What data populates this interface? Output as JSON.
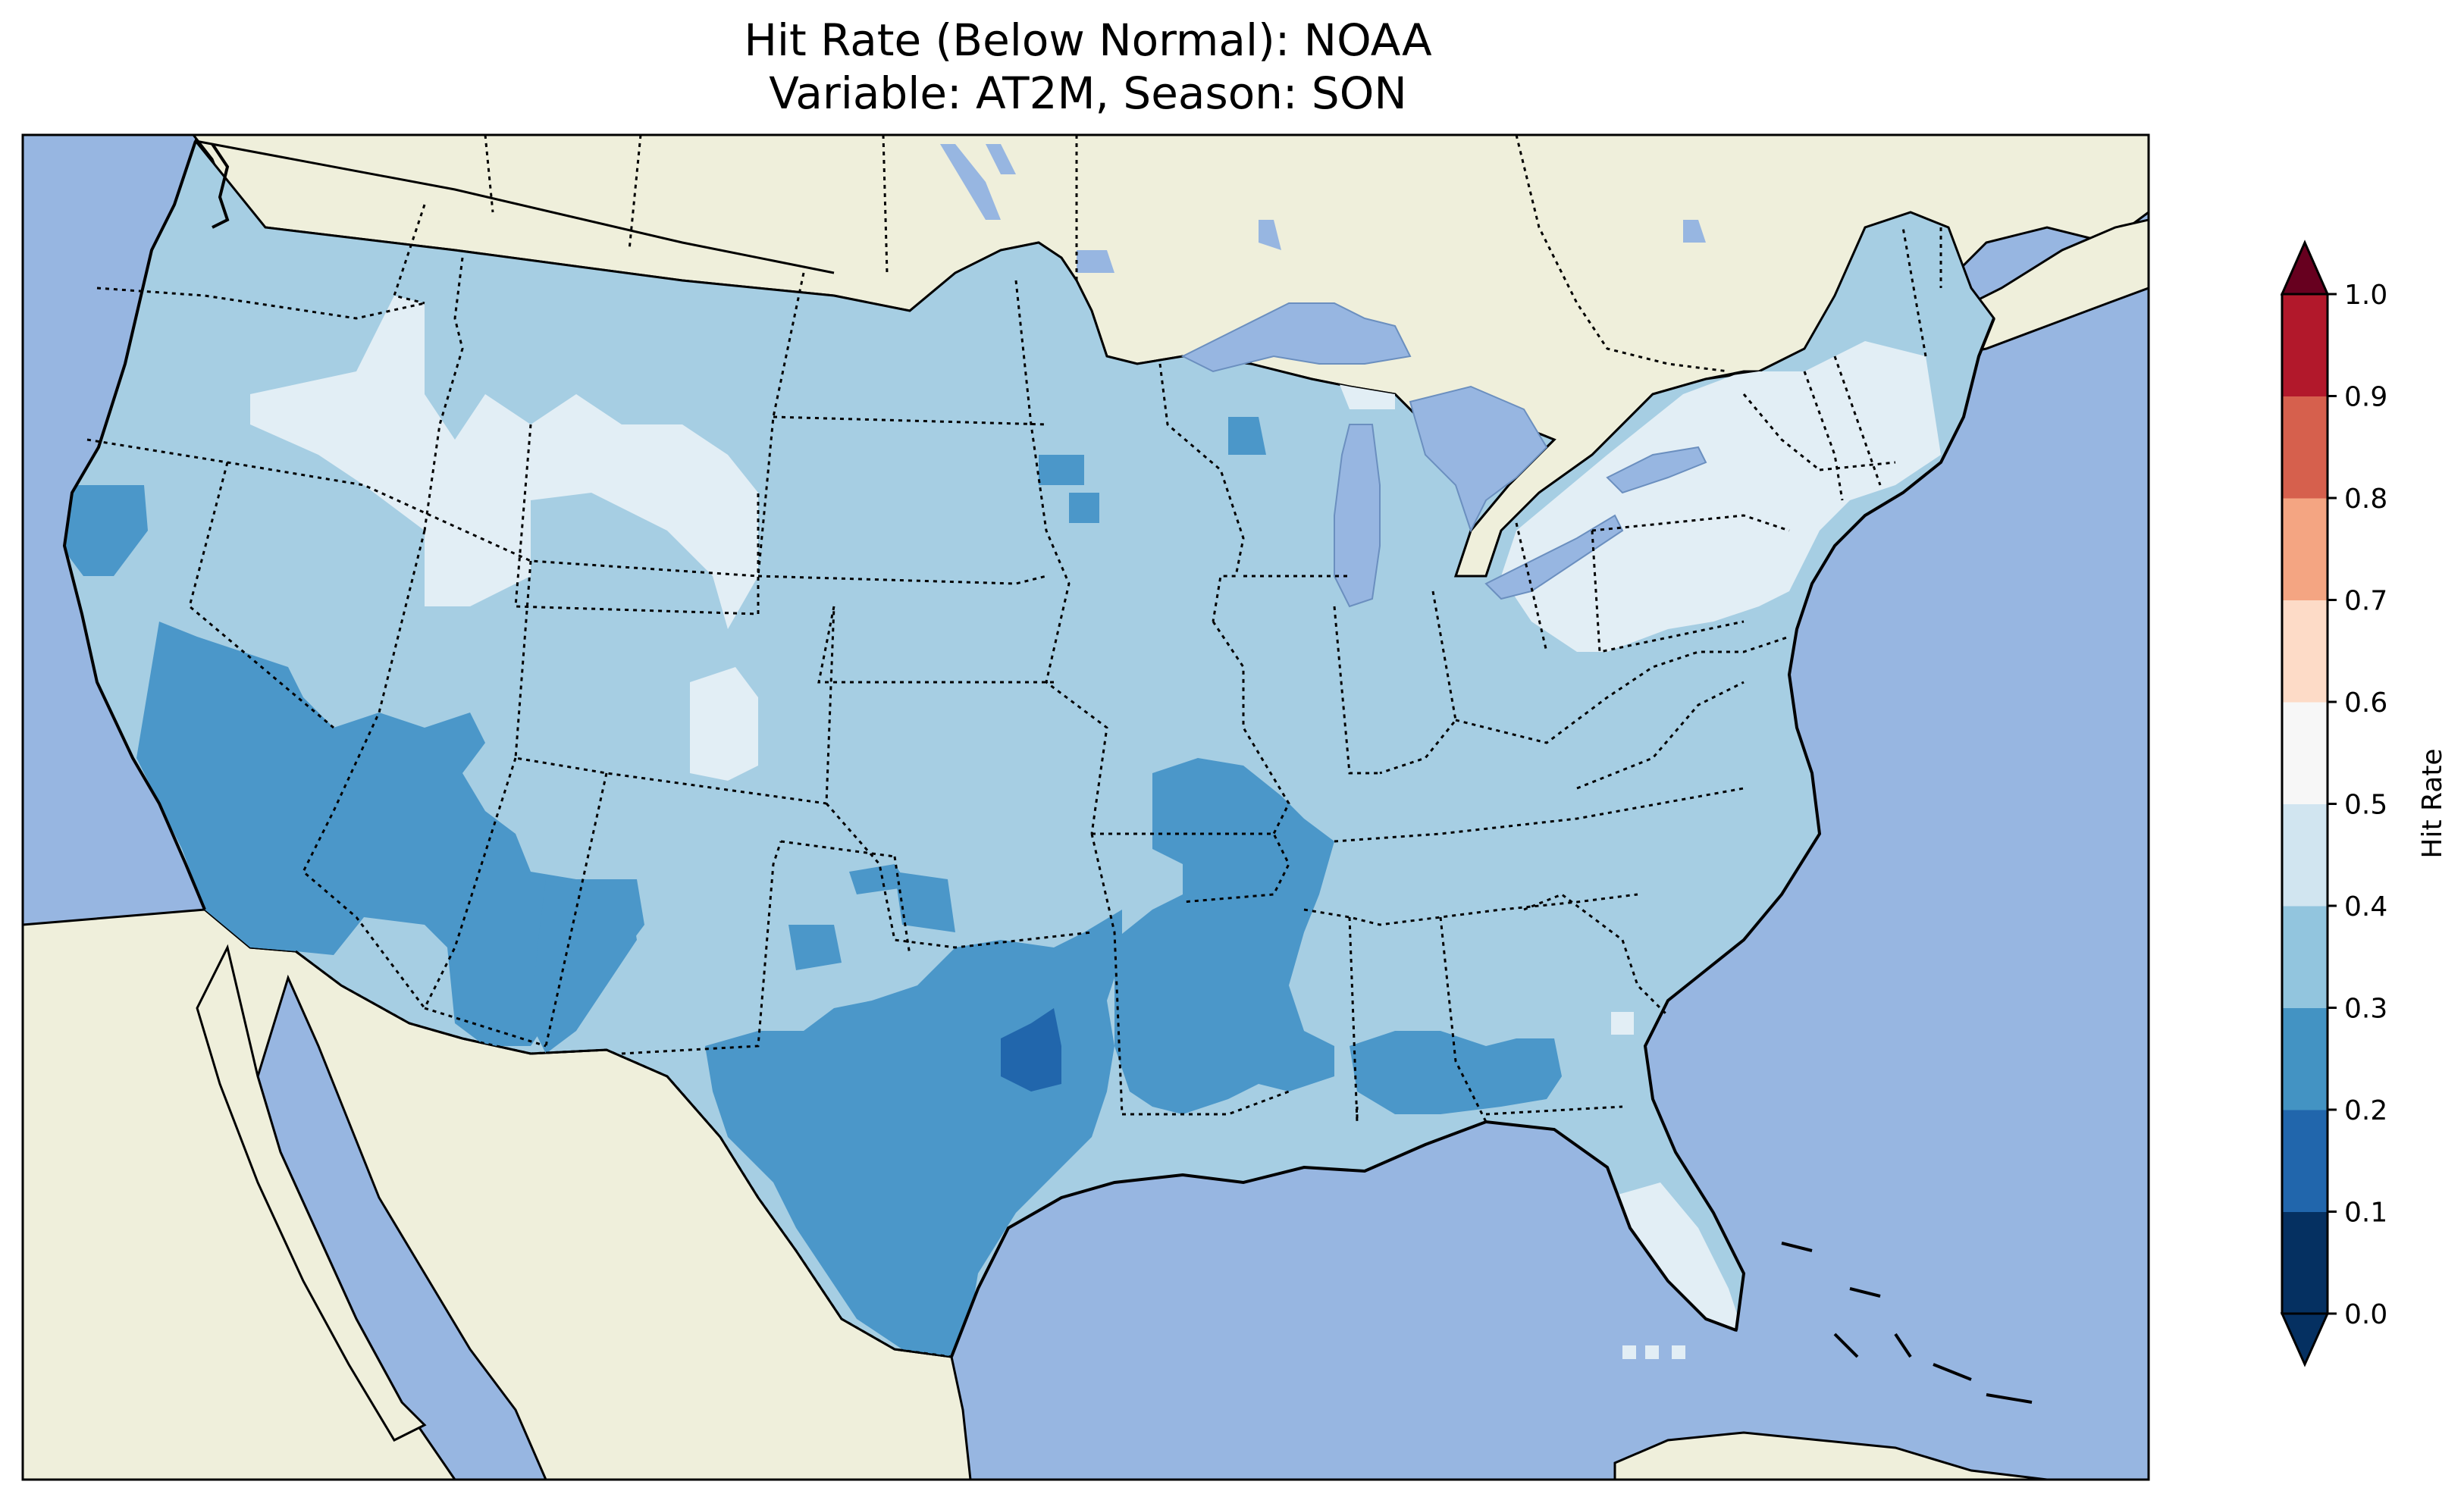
{
  "title": {
    "line1": "Hit Rate (Below Normal): NOAA",
    "line2": "Variable: AT2M, Season: SON"
  },
  "colors": {
    "ocean": "#97b6e1",
    "land": "#efefdb",
    "lake": "#97b6e1"
  },
  "colorbar": {
    "label": "Hit Rate",
    "ticks": [
      "0.0",
      "0.1",
      "0.2",
      "0.3",
      "0.4",
      "0.5",
      "0.6",
      "0.7",
      "0.8",
      "0.9",
      "1.0"
    ],
    "colors": [
      "#053061",
      "#2166ac",
      "#4393c3",
      "#92c5de",
      "#d1e5f0",
      "#f7f7f7",
      "#fddbc7",
      "#f4a582",
      "#d6604d",
      "#b2182b"
    ],
    "extend_under_color": "#053061",
    "extend_over_color": "#67001f"
  },
  "map_data": {
    "type": "choropleth",
    "region": "Contiguous United States",
    "value_range": [
      0.0,
      1.0
    ],
    "class_colors": {
      "0.1-0.2": "#2166ac",
      "0.2-0.3": "#4b97c9",
      "0.3-0.4": "#a6cee3",
      "0.4-0.5": "#e2eef5"
    }
  }
}
